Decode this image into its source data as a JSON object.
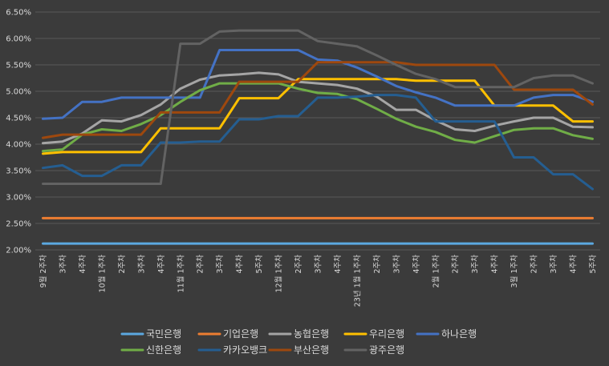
{
  "chart_data": {
    "type": "line",
    "ylim": [
      2.0,
      6.5
    ],
    "ytick_step": 0.5,
    "y_format": "percent_2dp",
    "grid": true,
    "legend_position": "bottom",
    "x": [
      "9월 2주차",
      "3주차",
      "4주차",
      "10월 1주차",
      "2주차",
      "3주차",
      "4주차",
      "11월 1주차",
      "2주차",
      "3주차",
      "4주차",
      "5주차",
      "12월 1주차",
      "2주차",
      "3주차",
      "4주차",
      "23년 1월 1주차",
      "2주차",
      "3주차",
      "4주차",
      "2월 1주차",
      "2주차",
      "3주차",
      "4주차",
      "3월 1주차",
      "2주차",
      "3주차",
      "4주차",
      "5주차"
    ],
    "series": [
      {
        "name": "국민은행",
        "color": "#5ba8e0",
        "values": [
          2.12,
          2.12,
          2.12,
          2.12,
          2.12,
          2.12,
          2.12,
          2.12,
          2.12,
          2.12,
          2.12,
          2.12,
          2.12,
          2.12,
          2.12,
          2.12,
          2.12,
          2.12,
          2.12,
          2.12,
          2.12,
          2.12,
          2.12,
          2.12,
          2.12,
          2.12,
          2.12,
          2.12,
          2.12
        ]
      },
      {
        "name": "기업은행",
        "color": "#ed7d31",
        "values": [
          2.6,
          2.6,
          2.6,
          2.6,
          2.6,
          2.6,
          2.6,
          2.6,
          2.6,
          2.6,
          2.6,
          2.6,
          2.6,
          2.6,
          2.6,
          2.6,
          2.6,
          2.6,
          2.6,
          2.6,
          2.6,
          2.6,
          2.6,
          2.6,
          2.6,
          2.6,
          2.6,
          2.6,
          2.6
        ]
      },
      {
        "name": "농협은행",
        "color": "#a5a5a5",
        "values": [
          4.02,
          4.05,
          4.2,
          4.45,
          4.43,
          4.55,
          4.75,
          5.05,
          5.22,
          5.3,
          5.32,
          5.35,
          5.32,
          5.18,
          5.15,
          5.12,
          5.05,
          4.9,
          4.65,
          4.65,
          4.45,
          4.28,
          4.25,
          4.35,
          4.43,
          4.5,
          4.5,
          4.33,
          4.32
        ]
      },
      {
        "name": "우리은행",
        "color": "#ffc000",
        "values": [
          3.82,
          3.85,
          3.85,
          3.85,
          3.85,
          3.85,
          4.3,
          4.3,
          4.3,
          4.3,
          4.87,
          4.87,
          4.87,
          5.23,
          5.23,
          5.23,
          5.23,
          5.23,
          5.23,
          5.2,
          5.2,
          5.2,
          5.2,
          4.73,
          4.73,
          4.73,
          4.73,
          4.43,
          4.43
        ]
      },
      {
        "name": "하나은행",
        "color": "#4472c4",
        "values": [
          4.48,
          4.5,
          4.8,
          4.8,
          4.88,
          4.88,
          4.88,
          4.88,
          4.88,
          5.78,
          5.78,
          5.78,
          5.78,
          5.78,
          5.6,
          5.58,
          5.45,
          5.28,
          5.1,
          4.98,
          4.88,
          4.73,
          4.73,
          4.73,
          4.73,
          4.88,
          4.93,
          4.93,
          4.8
        ]
      },
      {
        "name": "신한은행",
        "color": "#70ad47",
        "values": [
          3.87,
          3.9,
          4.18,
          4.28,
          4.25,
          4.38,
          4.55,
          4.8,
          5.02,
          5.15,
          5.15,
          5.15,
          5.15,
          5.05,
          4.97,
          4.95,
          4.85,
          4.67,
          4.48,
          4.33,
          4.23,
          4.08,
          4.03,
          4.15,
          4.27,
          4.3,
          4.3,
          4.17,
          4.1
        ]
      },
      {
        "name": "카카오뱅크",
        "color": "#255e91",
        "values": [
          3.55,
          3.6,
          3.4,
          3.4,
          3.6,
          3.6,
          4.03,
          4.03,
          4.05,
          4.05,
          4.47,
          4.47,
          4.53,
          4.53,
          4.88,
          4.88,
          4.9,
          4.93,
          4.93,
          4.88,
          4.43,
          4.43,
          4.43,
          4.43,
          3.75,
          3.75,
          3.43,
          3.43,
          3.15
        ]
      },
      {
        "name": "부산은행",
        "color": "#9e480e",
        "values": [
          4.12,
          4.18,
          4.18,
          4.18,
          4.18,
          4.18,
          4.6,
          4.6,
          4.6,
          4.6,
          5.18,
          5.18,
          5.18,
          5.18,
          5.55,
          5.55,
          5.55,
          5.55,
          5.55,
          5.5,
          5.5,
          5.5,
          5.5,
          5.5,
          5.03,
          5.03,
          5.03,
          5.03,
          4.75
        ]
      },
      {
        "name": "광주은행",
        "color": "#636363",
        "values": [
          3.25,
          3.25,
          3.25,
          3.25,
          3.25,
          3.25,
          3.25,
          5.9,
          5.9,
          6.13,
          6.15,
          6.15,
          6.15,
          6.15,
          5.95,
          5.9,
          5.85,
          5.68,
          5.5,
          5.33,
          5.23,
          5.08,
          5.08,
          5.08,
          5.08,
          5.25,
          5.3,
          5.3,
          5.15
        ]
      }
    ]
  }
}
